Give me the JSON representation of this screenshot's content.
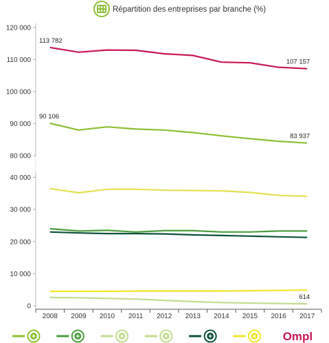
{
  "chart_data": {
    "type": "line",
    "title": "Répartition des entreprises par branche (%)",
    "x": [
      "2008",
      "2009",
      "2010",
      "2011",
      "2012",
      "2013",
      "2014",
      "2015",
      "2016",
      "2017"
    ],
    "y_ticks": [
      "0",
      "10 000",
      "20 000",
      "30 000",
      "40 000",
      "80 000",
      "90 000",
      "100 000",
      "110 000",
      "120 000"
    ],
    "y_axis_break": true,
    "grid": false,
    "series": [
      {
        "color": "#c8174f",
        "icon": "ompl-logo",
        "values": [
          113782,
          112300,
          113000,
          112900,
          111800,
          111300,
          109200,
          109000,
          107600,
          107157
        ]
      },
      {
        "color": "#8cbf35",
        "icon": "plus-icon",
        "values": [
          90106,
          88000,
          89000,
          88300,
          88000,
          87200,
          86200,
          85300,
          84500,
          83937
        ]
      },
      {
        "color": "#e3e153",
        "icon": "badge-icon",
        "values": [
          36500,
          35200,
          36300,
          36300,
          36000,
          35900,
          35800,
          35300,
          34400,
          34100
        ]
      },
      {
        "color": "#4a9e3c",
        "icon": "check-icon",
        "values": [
          24000,
          23300,
          23500,
          23000,
          23400,
          23400,
          23000,
          23000,
          23300,
          23300
        ]
      },
      {
        "color": "#0c5238",
        "icon": "tools-icon",
        "values": [
          23000,
          22700,
          22500,
          22500,
          22400,
          22100,
          21900,
          21700,
          21500,
          21300
        ]
      },
      {
        "color": "#f2e62c",
        "icon": "pen-icon",
        "values": [
          4500,
          4500,
          4500,
          4600,
          4600,
          4600,
          4600,
          4700,
          4800,
          4900
        ]
      },
      {
        "color": "#c3dc8e",
        "icon": "leaf-icon",
        "values": [
          2600,
          2500,
          2300,
          2100,
          1700,
          1300,
          1000,
          850,
          700,
          614
        ]
      }
    ],
    "labels": [
      {
        "series": 0,
        "index": 0,
        "text": "113 782"
      },
      {
        "series": 0,
        "index": 9,
        "text": "107 157"
      },
      {
        "series": 1,
        "index": 0,
        "text": "90 106"
      },
      {
        "series": 1,
        "index": 9,
        "text": "83 937"
      },
      {
        "series": 6,
        "index": 9,
        "text": "614"
      }
    ],
    "legend": {
      "placement": "bottom",
      "items": [
        {
          "color": "#8cbf35",
          "icon": "plus-icon"
        },
        {
          "color": "#4a9e3c",
          "icon": "check-icon"
        },
        {
          "color": "#c3dc8e",
          "icon": "leaf-icon"
        },
        {
          "color": "#c3dc8e",
          "icon": "refresh-icon"
        },
        {
          "color": "#0c5238",
          "icon": "tools-icon"
        },
        {
          "color": "#f2e62c",
          "icon": "pen-icon"
        },
        {
          "color": "#c8174f",
          "icon": "ompl-logo",
          "text": "Ompl"
        }
      ]
    },
    "title_icon": "building-icon",
    "title_icon_color": "#8cbf35"
  }
}
